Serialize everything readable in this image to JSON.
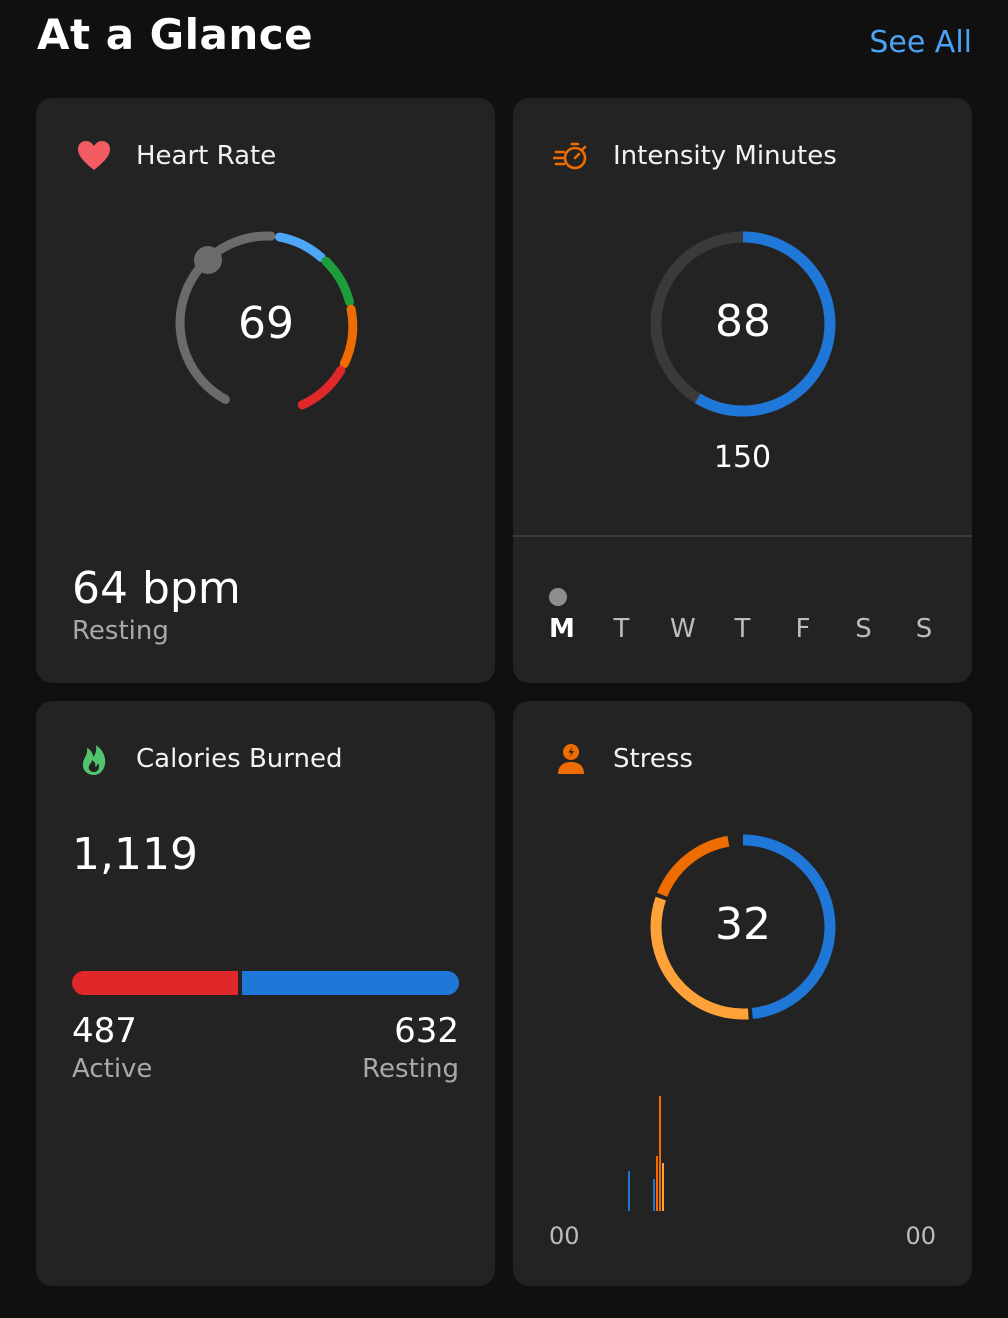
{
  "header": {
    "title": "At a Glance",
    "see_all_label": "See All"
  },
  "colors": {
    "background": "#101010",
    "card": "#232323",
    "accent_blue": "#1f78d8",
    "link_blue": "#4aa3f5",
    "heart_red": "#f25c63",
    "flame_green": "#52c46b",
    "orange": "#ef6c00",
    "light_orange": "#ffa23a",
    "red": "#e0272a"
  },
  "heart_rate": {
    "title": "Heart Rate",
    "icon": "heart-icon",
    "current_value": "69",
    "resting_value": "64 bpm",
    "resting_label": "Resting"
  },
  "intensity_minutes": {
    "title": "Intensity Minutes",
    "icon": "stopwatch-icon",
    "value": "88",
    "goal": "150",
    "progress_fraction": 0.587,
    "days": [
      "M",
      "T",
      "W",
      "T",
      "F",
      "S",
      "S"
    ],
    "current_day_index": 0
  },
  "calories": {
    "title": "Calories Burned",
    "icon": "flame-icon",
    "total": "1,119",
    "active_value": "487",
    "active_label": "Active",
    "resting_value": "632",
    "resting_label": "Resting",
    "active_fraction": 0.435
  },
  "stress": {
    "title": "Stress",
    "icon": "stress-person-icon",
    "value": "32",
    "ring_segments": [
      {
        "name": "rest",
        "color": "#1f78d8",
        "fraction": 0.49
      },
      {
        "name": "low",
        "color": "#ffa23a",
        "fraction": 0.32
      },
      {
        "name": "medium",
        "color": "#ef6c00",
        "fraction": 0.17
      }
    ],
    "axis_start": "00",
    "axis_end": "00"
  }
}
